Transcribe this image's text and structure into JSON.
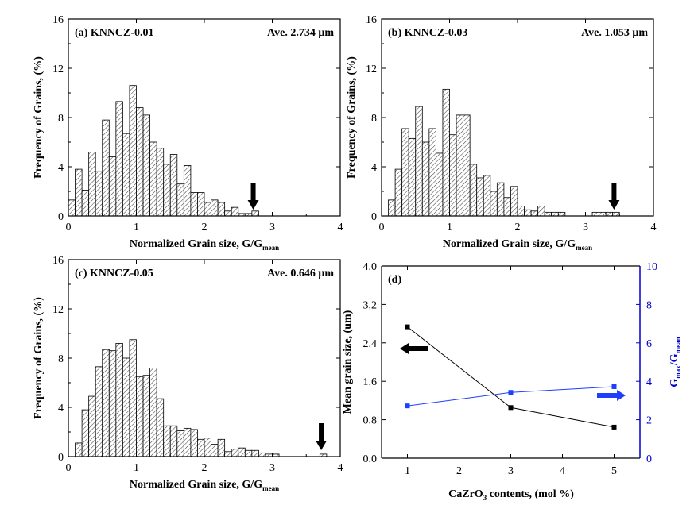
{
  "figure": {
    "axis_titles": {
      "hist_x_main": "Normalized Grain size, G/G",
      "hist_x_sub": "mean",
      "hist_y": "Frequency of Grains, (%)"
    },
    "colors": {
      "axis": "#000000",
      "blue_axis": "#0000cc",
      "series_black": "#000000",
      "series_blue": "#1f3fff",
      "hatch": "#444444"
    }
  },
  "chart_data": [
    {
      "type": "bar",
      "id": "a",
      "title": "(a) KNNCZ-0.01",
      "average": "Ave. 2.734 μm",
      "xlabel": "Normalized Grain size, G/Gmean",
      "ylabel": "Frequency of Grains, (%)",
      "xlim": [
        0,
        4
      ],
      "ylim": [
        0,
        16
      ],
      "xticks": [
        "0",
        "1",
        "2",
        "3",
        "4"
      ],
      "yticks": [
        "0",
        "4",
        "8",
        "12",
        "16"
      ],
      "bin_width": 0.1,
      "x": [
        0.05,
        0.15,
        0.25,
        0.35,
        0.45,
        0.55,
        0.65,
        0.75,
        0.85,
        0.95,
        1.05,
        1.15,
        1.25,
        1.35,
        1.45,
        1.55,
        1.65,
        1.75,
        1.85,
        1.95,
        2.05,
        2.15,
        2.25,
        2.35,
        2.45,
        2.55,
        2.65,
        2.75
      ],
      "values": [
        1.3,
        3.8,
        2.1,
        5.2,
        3.6,
        7.8,
        4.8,
        9.3,
        6.7,
        10.6,
        8.8,
        8.2,
        6.0,
        5.5,
        4.2,
        5.0,
        2.6,
        4.1,
        1.9,
        1.9,
        1.1,
        1.3,
        1.1,
        0.4,
        0.7,
        0.2,
        0.2,
        0.4
      ],
      "arrow_x": 2.72
    },
    {
      "type": "bar",
      "id": "b",
      "title": "(b) KNNCZ-0.03",
      "average": "Ave. 1.053 μm",
      "xlabel": "Normalized Grain size, G/Gmean",
      "ylabel": "Frequency of Grains, (%)",
      "xlim": [
        0,
        4
      ],
      "ylim": [
        0,
        16
      ],
      "xticks": [
        "0",
        "1",
        "2",
        "3",
        "4"
      ],
      "yticks": [
        "0",
        "4",
        "8",
        "12",
        "16"
      ],
      "bin_width": 0.1,
      "x": [
        0.15,
        0.25,
        0.35,
        0.45,
        0.55,
        0.65,
        0.75,
        0.85,
        0.95,
        1.05,
        1.15,
        1.25,
        1.35,
        1.45,
        1.55,
        1.65,
        1.75,
        1.85,
        1.95,
        2.05,
        2.15,
        2.25,
        2.35,
        2.45,
        2.55,
        2.65,
        3.15,
        3.25,
        3.35,
        3.45
      ],
      "values": [
        1.3,
        3.8,
        7.1,
        6.3,
        8.9,
        6.0,
        7.1,
        5.1,
        10.3,
        6.6,
        8.2,
        8.2,
        4.2,
        3.1,
        3.3,
        2.0,
        2.7,
        1.5,
        2.4,
        0.8,
        0.5,
        0.4,
        0.8,
        0.3,
        0.3,
        0.3,
        0.3,
        0.3,
        0.3,
        0.3
      ],
      "arrow_x": 3.42
    },
    {
      "type": "bar",
      "id": "c",
      "title": "(c) KNNCZ-0.05",
      "average": "Ave. 0.646 μm",
      "xlabel": "Normalized Grain size, G/Gmean",
      "ylabel": "Frequency of Grains, (%)",
      "xlim": [
        0,
        4
      ],
      "ylim": [
        0,
        16
      ],
      "xticks": [
        "0",
        "1",
        "2",
        "3",
        "4"
      ],
      "yticks": [
        "0",
        "4",
        "8",
        "12",
        "16"
      ],
      "bin_width": 0.1,
      "x": [
        0.15,
        0.25,
        0.35,
        0.45,
        0.55,
        0.65,
        0.75,
        0.85,
        0.95,
        1.05,
        1.15,
        1.25,
        1.35,
        1.45,
        1.55,
        1.65,
        1.75,
        1.85,
        1.95,
        2.05,
        2.15,
        2.25,
        2.35,
        2.45,
        2.55,
        2.65,
        2.75,
        2.85,
        2.95,
        3.05,
        3.75
      ],
      "values": [
        1.1,
        3.8,
        4.9,
        7.3,
        8.7,
        8.6,
        9.2,
        8.0,
        9.5,
        6.5,
        6.6,
        7.2,
        4.7,
        2.5,
        2.5,
        2.1,
        2.3,
        2.2,
        1.4,
        1.5,
        1.0,
        1.4,
        0.4,
        0.6,
        0.7,
        0.5,
        0.5,
        0.3,
        0.2,
        0.2,
        0.2
      ],
      "arrow_x": 3.72
    },
    {
      "type": "line",
      "id": "d",
      "title": "(d)",
      "xlabel_main": "CaZrO",
      "xlabel_sub": "3",
      "xlabel_tail": " contents, (mol %)",
      "ylabel_left": "Mean grain size, (um)",
      "ylabel_right_main": "G",
      "ylabel_right_sub1": "max",
      "ylabel_right_mid": "/G",
      "ylabel_right_sub2": "mean",
      "xlim": [
        0.5,
        5.5
      ],
      "ylim_left": [
        0,
        4.0
      ],
      "ylim_right": [
        0,
        10
      ],
      "xticks": [
        "1",
        "2",
        "3",
        "4",
        "5"
      ],
      "yticks_left": [
        "0.0",
        "0.8",
        "1.6",
        "2.4",
        "3.2",
        "4.0"
      ],
      "yticks_right": [
        "0",
        "2",
        "4",
        "6",
        "8",
        "10"
      ],
      "series": [
        {
          "name": "Mean grain size",
          "axis": "left",
          "color": "#000000",
          "x": [
            1,
            3,
            5
          ],
          "values": [
            2.734,
            1.053,
            0.646
          ]
        },
        {
          "name": "Gmax/Gmean",
          "axis": "right",
          "color": "#1f3fff",
          "x": [
            1,
            3,
            5
          ],
          "values": [
            2.72,
            3.42,
            3.72
          ]
        }
      ]
    }
  ]
}
